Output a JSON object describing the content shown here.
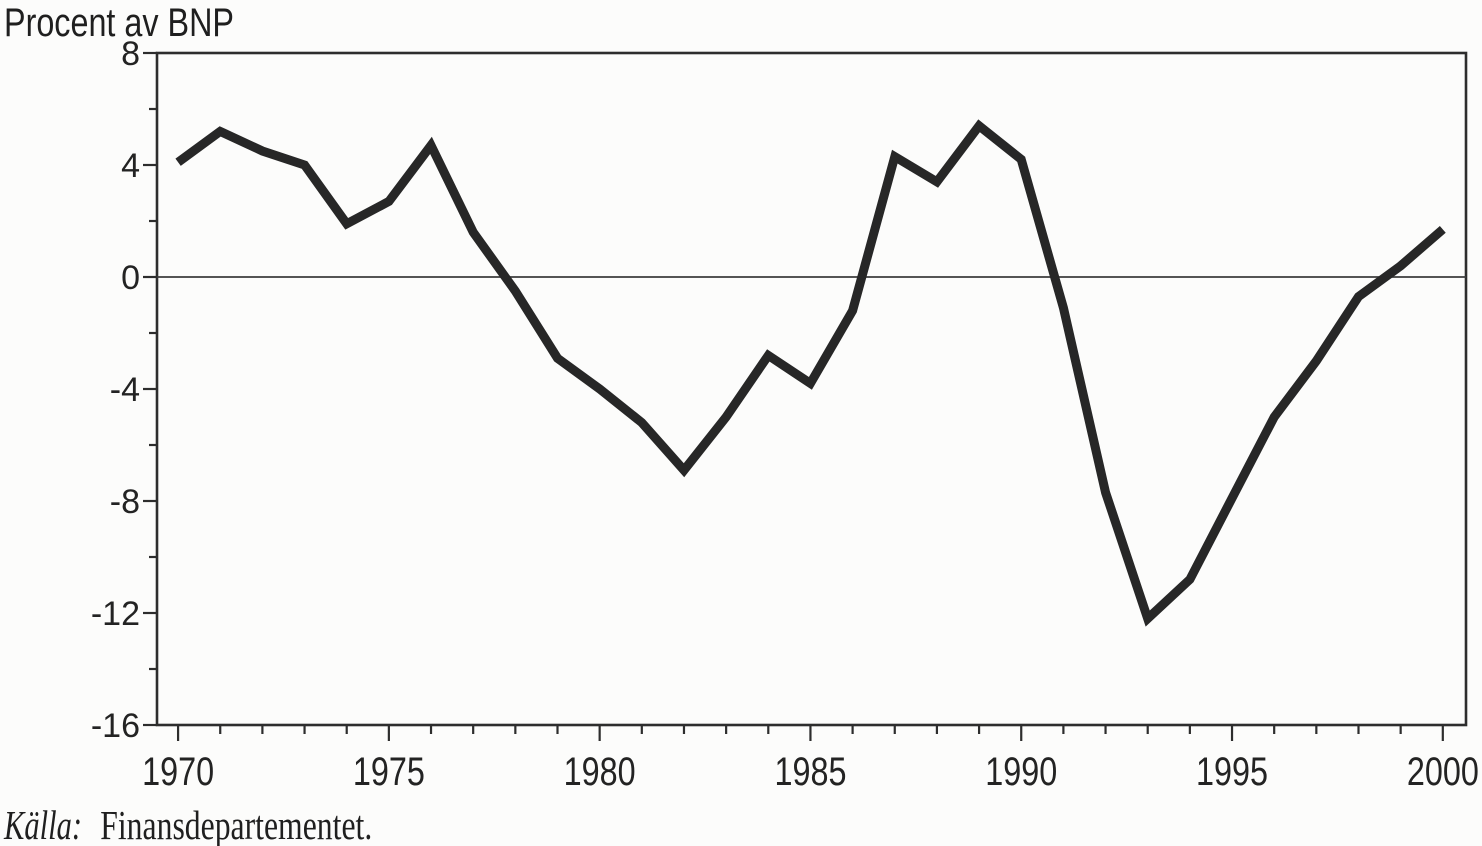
{
  "title": "Procent av BNP",
  "source": {
    "prefix": "Källa:",
    "text": "Finansdepartementet."
  },
  "chart_data": {
    "type": "line",
    "title": "Procent av BNP",
    "x": [
      1970,
      1971,
      1972,
      1973,
      1974,
      1975,
      1976,
      1977,
      1978,
      1979,
      1980,
      1981,
      1982,
      1983,
      1984,
      1985,
      1986,
      1987,
      1988,
      1989,
      1990,
      1991,
      1992,
      1993,
      1994,
      1995,
      1996,
      1997,
      1998,
      1999,
      2000
    ],
    "values": [
      4.1,
      5.2,
      4.5,
      4.0,
      1.9,
      2.7,
      4.7,
      1.6,
      -0.5,
      -2.9,
      -4.0,
      -5.2,
      -6.9,
      -5.0,
      -2.8,
      -3.8,
      -1.2,
      4.3,
      3.4,
      5.4,
      4.2,
      -1.1,
      -7.7,
      -12.2,
      -10.8,
      -7.9,
      -5.0,
      -3.0,
      -0.7,
      0.4,
      1.7
    ],
    "xlabel": "",
    "ylabel": "Procent av BNP",
    "xlim": [
      1969.5,
      2000.55
    ],
    "ylim": [
      -16,
      8
    ],
    "y_major_ticks": [
      8,
      4,
      0,
      -4,
      -8,
      -12,
      -16
    ],
    "y_minor_ticks": [
      6,
      2,
      -2,
      -6,
      -10,
      -14
    ],
    "x_major_ticks": [
      1970,
      1975,
      1980,
      1985,
      1990,
      1995,
      2000
    ],
    "x_minor_step": 1,
    "grid": false,
    "legend": false,
    "zero_line": true,
    "line_color": "#272727",
    "background": "#fcfcfb"
  }
}
